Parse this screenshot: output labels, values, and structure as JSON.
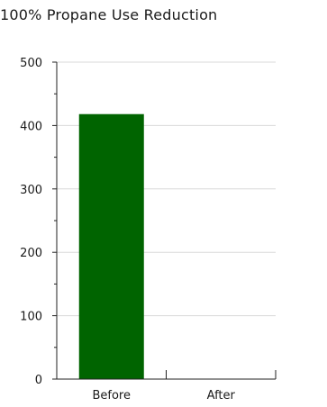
{
  "chart_data": {
    "type": "bar",
    "title": "100% Propane Use Reduction",
    "categories": [
      "Before",
      "After"
    ],
    "values": [
      418,
      0
    ],
    "ylim": [
      0,
      500
    ],
    "yticks": [
      0,
      100,
      200,
      300,
      400,
      500
    ],
    "grid": true,
    "bar_color": "#006400",
    "grid_color": "#d8d8d8",
    "axis_color": "#222222"
  }
}
